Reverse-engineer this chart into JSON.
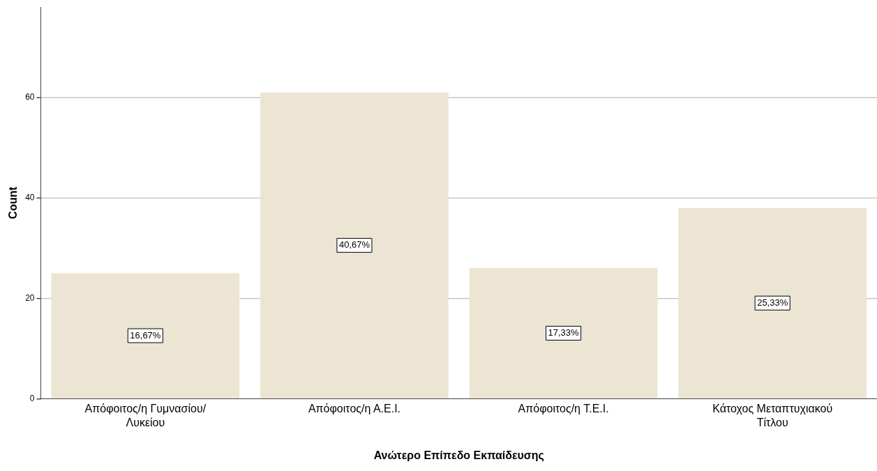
{
  "chart_data": {
    "type": "bar",
    "xlabel": "Ανώτερο Επίπεδο Εκπαίδευσης",
    "ylabel": "Count",
    "categories": [
      "Απόφοιτος/η Γυμνασίου/ Λυκείου",
      "Απόφοιτος/η Α.Ε.Ι.",
      "Απόφοιτος/η Τ.Ε.Ι.",
      "Κάτοχος Μεταπτυχιακού Τίτλου"
    ],
    "values": [
      25,
      61,
      26,
      38
    ],
    "color": "#ece5d3",
    "annotations": [
      "16,67%",
      "40,67%",
      "17,33%",
      "25,33%"
    ],
    "ylim": [
      0,
      78
    ],
    "yticks": [
      0,
      20,
      40,
      60
    ],
    "grid": "y",
    "legend": false
  }
}
